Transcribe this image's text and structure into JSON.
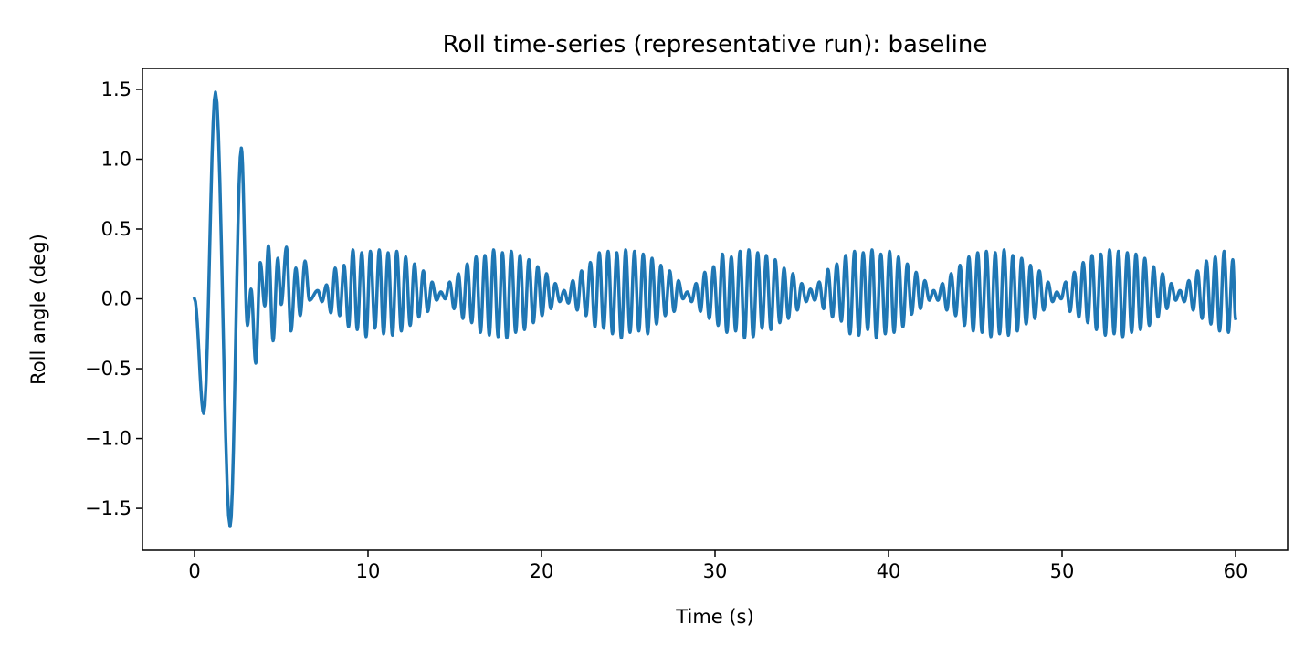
{
  "chart_data": {
    "type": "line",
    "title": "Roll time-series (representative run): baseline",
    "xlabel": "Time (s)",
    "ylabel": "Roll angle (deg)",
    "xlim": [
      -3,
      63
    ],
    "ylim": [
      -1.8,
      1.65
    ],
    "x_ticks": [
      0,
      10,
      20,
      30,
      40,
      50,
      60
    ],
    "x_tick_labels": [
      "0",
      "10",
      "20",
      "30",
      "40",
      "50",
      "60"
    ],
    "y_ticks": [
      -1.5,
      -1.0,
      -0.5,
      0.0,
      0.5,
      1.0,
      1.5
    ],
    "y_tick_labels": [
      "−1.5",
      "−1.0",
      "−0.5",
      "0.0",
      "0.5",
      "1.0",
      "1.5"
    ],
    "grid": false,
    "line_color": "#1f77b4",
    "series": [
      {
        "points": "local extrema (s, deg)",
        "x": [
          0,
          0.53,
          1.21,
          2.05,
          2.7,
          3.05,
          3.26,
          3.53,
          3.79,
          4.05,
          4.26,
          4.53,
          4.8,
          5.0,
          5.3,
          5.56,
          5.84,
          6.09,
          6.37,
          6.63,
          7.1,
          7.35,
          7.61,
          7.86,
          8.11,
          8.37,
          8.62,
          8.88,
          9.13,
          9.38,
          9.64,
          9.89,
          10.14,
          10.4,
          10.65,
          10.9,
          11.16,
          11.41,
          11.66,
          11.92,
          12.17,
          12.43,
          12.68,
          12.93,
          13.19,
          13.44,
          13.69,
          13.95,
          14.2,
          14.45,
          14.71,
          14.96,
          15.21,
          15.47,
          15.72,
          15.98,
          16.23,
          16.48,
          16.74,
          16.99,
          17.24,
          17.5,
          17.75,
          18.0,
          18.26,
          18.51,
          18.76,
          19.02,
          19.27,
          19.53,
          19.78,
          20.03,
          20.29,
          20.54,
          20.79,
          21.05,
          21.3,
          21.55,
          21.81,
          22.06,
          22.31,
          22.57,
          22.82,
          23.08,
          23.33,
          23.58,
          23.84,
          24.09,
          24.34,
          24.6,
          24.85,
          25.1,
          25.36,
          25.61,
          25.86,
          26.12,
          26.37,
          26.63,
          26.88,
          27.13,
          27.39,
          27.64,
          27.89,
          28.15,
          28.4,
          28.65,
          28.91,
          29.16,
          29.41,
          29.67,
          29.92,
          30.18,
          30.43,
          30.68,
          30.94,
          31.19,
          31.44,
          31.7,
          31.95,
          32.2,
          32.46,
          32.71,
          32.96,
          33.22,
          33.47,
          33.73,
          33.98,
          34.23,
          34.49,
          34.74,
          34.99,
          35.25,
          35.5,
          35.75,
          36.01,
          36.26,
          36.51,
          36.77,
          37.02,
          37.28,
          37.53,
          37.78,
          38.04,
          38.29,
          38.54,
          38.8,
          39.05,
          39.3,
          39.56,
          39.81,
          40.06,
          40.32,
          40.57,
          40.83,
          41.08,
          41.33,
          41.59,
          41.84,
          42.09,
          42.35,
          42.6,
          42.85,
          43.11,
          43.36,
          43.61,
          43.87,
          44.12,
          44.38,
          44.63,
          44.88,
          45.14,
          45.39,
          45.64,
          45.9,
          46.15,
          46.4,
          46.66,
          46.91,
          47.16,
          47.42,
          47.67,
          47.93,
          48.18,
          48.43,
          48.69,
          48.94,
          49.19,
          49.45,
          49.7,
          49.95,
          50.21,
          50.46,
          50.71,
          50.97,
          51.22,
          51.48,
          51.73,
          51.98,
          52.24,
          52.49,
          52.74,
          53.0,
          53.25,
          53.5,
          53.76,
          54.01,
          54.26,
          54.52,
          54.77,
          55.03,
          55.28,
          55.53,
          55.79,
          56.04,
          56.29,
          56.55,
          56.8,
          57.05,
          57.31,
          57.56,
          57.81,
          58.07,
          58.32,
          58.58,
          58.83,
          59.08,
          59.34,
          59.59,
          59.84,
          60.0
        ],
        "y": [
          0,
          -0.82,
          1.48,
          -1.63,
          1.08,
          -0.19,
          0.07,
          -0.46,
          0.26,
          -0.05,
          0.38,
          -0.3,
          0.29,
          -0.04,
          0.37,
          -0.23,
          0.22,
          -0.12,
          0.27,
          -0.01,
          0.06,
          -0.02,
          0.1,
          -0.1,
          0.22,
          -0.12,
          0.24,
          -0.2,
          0.35,
          -0.22,
          0.33,
          -0.27,
          0.34,
          -0.21,
          0.35,
          -0.25,
          0.33,
          -0.26,
          0.34,
          -0.23,
          0.3,
          -0.19,
          0.25,
          -0.13,
          0.2,
          -0.09,
          0.12,
          -0.01,
          0.05,
          0.0,
          0.12,
          -0.07,
          0.18,
          -0.14,
          0.25,
          -0.17,
          0.3,
          -0.24,
          0.31,
          -0.26,
          0.35,
          -0.27,
          0.33,
          -0.28,
          0.34,
          -0.24,
          0.31,
          -0.22,
          0.28,
          -0.17,
          0.23,
          -0.12,
          0.18,
          -0.07,
          0.11,
          -0.02,
          0.06,
          -0.03,
          0.13,
          -0.08,
          0.2,
          -0.12,
          0.26,
          -0.2,
          0.33,
          -0.21,
          0.34,
          -0.25,
          0.33,
          -0.28,
          0.35,
          -0.24,
          0.34,
          -0.23,
          0.32,
          -0.25,
          0.29,
          -0.18,
          0.24,
          -0.12,
          0.2,
          -0.09,
          0.13,
          0.0,
          0.05,
          -0.02,
          0.11,
          -0.09,
          0.19,
          -0.14,
          0.23,
          -0.19,
          0.32,
          -0.24,
          0.3,
          -0.23,
          0.34,
          -0.28,
          0.35,
          -0.27,
          0.33,
          -0.21,
          0.31,
          -0.22,
          0.28,
          -0.17,
          0.22,
          -0.14,
          0.18,
          -0.08,
          0.11,
          -0.02,
          0.07,
          -0.01,
          0.12,
          -0.07,
          0.21,
          -0.13,
          0.25,
          -0.16,
          0.31,
          -0.25,
          0.34,
          -0.26,
          0.33,
          -0.22,
          0.35,
          -0.28,
          0.32,
          -0.25,
          0.34,
          -0.24,
          0.3,
          -0.2,
          0.25,
          -0.11,
          0.19,
          -0.07,
          0.13,
          -0.01,
          0.06,
          -0.01,
          0.11,
          -0.08,
          0.18,
          -0.12,
          0.24,
          -0.19,
          0.3,
          -0.23,
          0.33,
          -0.24,
          0.34,
          -0.27,
          0.33,
          -0.25,
          0.35,
          -0.26,
          0.31,
          -0.23,
          0.29,
          -0.18,
          0.24,
          -0.14,
          0.2,
          -0.08,
          0.12,
          -0.02,
          0.05,
          0.0,
          0.12,
          -0.09,
          0.19,
          -0.13,
          0.26,
          -0.17,
          0.31,
          -0.22,
          0.32,
          -0.26,
          0.35,
          -0.25,
          0.34,
          -0.27,
          0.33,
          -0.24,
          0.32,
          -0.22,
          0.29,
          -0.19,
          0.23,
          -0.13,
          0.18,
          -0.07,
          0.11,
          -0.01,
          0.06,
          -0.02,
          0.13,
          -0.08,
          0.2,
          -0.14,
          0.27,
          -0.18,
          0.3,
          -0.23,
          0.34,
          -0.24,
          0.28,
          -0.14
        ]
      }
    ]
  }
}
